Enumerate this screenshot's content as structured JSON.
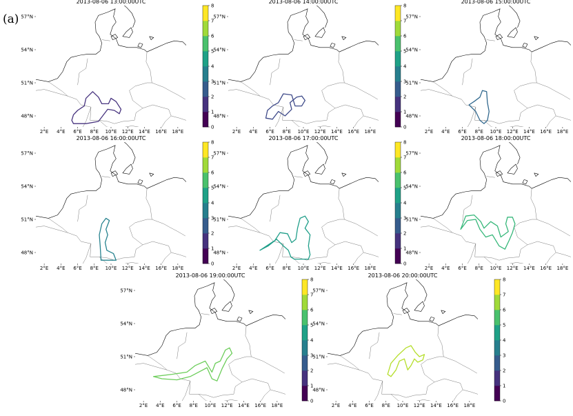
{
  "figure_label": "(a)",
  "colors": {
    "colormap": "viridis",
    "colorbar": [
      "#440154",
      "#46327e",
      "#365c8d",
      "#277f8e",
      "#1fa187",
      "#4ac16d",
      "#a0da39",
      "#fde725"
    ],
    "coast": "#000000",
    "border": "#555555"
  },
  "chart_data": [
    {
      "type": "contour",
      "title": "2013-08-06 13:00:00UTC",
      "level": 0.3,
      "color": "#46327e",
      "xlim": [
        1,
        19
      ],
      "ylim": [
        47,
        58
      ],
      "xticks": [
        "2°E",
        "4°E",
        "6°E",
        "8°E",
        "10°E",
        "12°E",
        "14°E",
        "16°E",
        "18°E"
      ],
      "yticks": [
        "48°N",
        "51°N",
        "54°N",
        "57°N"
      ],
      "colorbar": {
        "min": 0,
        "max": 8,
        "ticks": [
          "0",
          "1",
          "2",
          "3",
          "4",
          "5",
          "6",
          "7",
          "8"
        ]
      },
      "contour": [
        [
          5.3,
          47.6
        ],
        [
          5.5,
          47.3
        ],
        [
          7.0,
          47.3
        ],
        [
          8.5,
          47.5
        ],
        [
          9.6,
          48.6
        ],
        [
          10.4,
          48.5
        ],
        [
          11.0,
          48.2
        ],
        [
          11.2,
          48.6
        ],
        [
          10.6,
          49.3
        ],
        [
          10.0,
          49.6
        ],
        [
          9.7,
          49.1
        ],
        [
          8.9,
          49.1
        ],
        [
          8.5,
          49.7
        ],
        [
          7.8,
          50.2
        ],
        [
          7.0,
          49.6
        ],
        [
          6.8,
          48.9
        ],
        [
          6.0,
          48.5
        ],
        [
          5.5,
          48.1
        ],
        [
          5.3,
          47.6
        ]
      ]
    },
    {
      "type": "contour",
      "title": "2013-08-06 14:00:00UTC",
      "level": 1.2,
      "color": "#3e4a89",
      "xlim": [
        1,
        19
      ],
      "ylim": [
        47,
        58
      ],
      "xticks": [
        "2°E",
        "4°E",
        "6°E",
        "8°E",
        "10°E",
        "12°E",
        "14°E",
        "16°E",
        "18°E"
      ],
      "yticks": [
        "48°N",
        "51°N",
        "54°N",
        "57°N"
      ],
      "colorbar": {
        "min": 0,
        "max": 8,
        "ticks": [
          "0",
          "1",
          "2",
          "3",
          "4",
          "5",
          "6",
          "7",
          "8"
        ]
      },
      "contour": [
        [
          5.5,
          47.8
        ],
        [
          6.3,
          47.7
        ],
        [
          7.0,
          48.4
        ],
        [
          7.8,
          48.0
        ],
        [
          8.6,
          48.6
        ],
        [
          8.4,
          49.2
        ],
        [
          9.2,
          49.7
        ],
        [
          9.8,
          49.8
        ],
        [
          10.2,
          49.4
        ],
        [
          9.8,
          48.9
        ],
        [
          9.0,
          48.9
        ],
        [
          8.6,
          49.9
        ],
        [
          7.6,
          50.0
        ],
        [
          7.0,
          49.2
        ],
        [
          6.3,
          48.9
        ],
        [
          5.7,
          48.5
        ],
        [
          5.5,
          47.8
        ]
      ]
    },
    {
      "type": "contour",
      "title": "2013-08-06 15:00:00UTC",
      "level": 2.2,
      "color": "#31688e",
      "xlim": [
        1,
        19
      ],
      "ylim": [
        47,
        58
      ],
      "xticks": [
        "2°E",
        "4°E",
        "6°E",
        "8°E",
        "10°E",
        "12°E",
        "14°E",
        "16°E",
        "18°E"
      ],
      "yticks": [
        "48°N",
        "51°N",
        "54°N",
        "57°N"
      ],
      "colorbar": {
        "min": 0,
        "max": 8,
        "ticks": [
          "0",
          "1",
          "2",
          "3",
          "4",
          "5",
          "6",
          "7",
          "8"
        ]
      },
      "contour": [
        [
          6.8,
          49.0
        ],
        [
          7.6,
          48.4
        ],
        [
          8.1,
          47.6
        ],
        [
          8.6,
          47.3
        ],
        [
          9.0,
          47.6
        ],
        [
          9.2,
          48.4
        ],
        [
          9.0,
          49.2
        ],
        [
          8.9,
          50.2
        ],
        [
          8.4,
          50.3
        ],
        [
          8.1,
          49.7
        ],
        [
          7.4,
          49.3
        ],
        [
          6.8,
          49.0
        ]
      ]
    },
    {
      "type": "contour",
      "title": "2013-08-06 16:00:00UTC",
      "level": 3.1,
      "color": "#26828e",
      "xlim": [
        1,
        19
      ],
      "ylim": [
        47,
        58
      ],
      "xticks": [
        "2°E",
        "4°E",
        "6°E",
        "8°E",
        "10°E",
        "12°E",
        "14°E",
        "16°E",
        "18°E"
      ],
      "yticks": [
        "48°N",
        "51°N",
        "54°N",
        "57°N"
      ],
      "colorbar": {
        "min": 0,
        "max": 8,
        "ticks": [
          "0",
          "1",
          "2",
          "3",
          "4",
          "5",
          "6",
          "7",
          "8"
        ]
      },
      "contour": [
        [
          8.8,
          47.3
        ],
        [
          10.6,
          47.3
        ],
        [
          10.3,
          47.9
        ],
        [
          9.5,
          48.2
        ],
        [
          9.3,
          48.9
        ],
        [
          9.6,
          49.6
        ],
        [
          9.4,
          50.1
        ],
        [
          9.8,
          50.9
        ],
        [
          9.4,
          51.1
        ],
        [
          8.9,
          50.6
        ],
        [
          8.6,
          49.6
        ],
        [
          8.7,
          48.6
        ],
        [
          8.8,
          47.3
        ]
      ]
    },
    {
      "type": "contour",
      "title": "2013-08-06 17:00:00UTC",
      "level": 3.8,
      "color": "#1f9e89",
      "xlim": [
        1,
        19
      ],
      "ylim": [
        47,
        58
      ],
      "xticks": [
        "2°E",
        "4°E",
        "6°E",
        "8°E",
        "10°E",
        "12°E",
        "14°E",
        "16°E",
        "18°E"
      ],
      "yticks": [
        "48°N",
        "51°N",
        "54°N",
        "57°N"
      ],
      "colorbar": {
        "min": 0,
        "max": 8,
        "ticks": [
          "0",
          "1",
          "2",
          "3",
          "4",
          "5",
          "6",
          "7",
          "8"
        ]
      },
      "contour": [
        [
          4.8,
          48.2
        ],
        [
          5.8,
          48.6
        ],
        [
          6.8,
          49.2
        ],
        [
          7.6,
          48.6
        ],
        [
          8.2,
          48.2
        ],
        [
          8.5,
          47.6
        ],
        [
          8.9,
          47.4
        ],
        [
          10.6,
          47.4
        ],
        [
          10.8,
          47.8
        ],
        [
          10.6,
          48.6
        ],
        [
          10.8,
          49.6
        ],
        [
          10.2,
          50.2
        ],
        [
          10.6,
          50.8
        ],
        [
          10.2,
          51.3
        ],
        [
          9.6,
          51.1
        ],
        [
          9.3,
          50.2
        ],
        [
          9.1,
          49.2
        ],
        [
          8.6,
          48.9
        ],
        [
          8.1,
          49.7
        ],
        [
          7.2,
          49.8
        ],
        [
          6.6,
          49.1
        ],
        [
          5.6,
          48.6
        ],
        [
          4.8,
          48.2
        ]
      ]
    },
    {
      "type": "contour",
      "title": "2013-08-06 18:00:00UTC",
      "level": 4.7,
      "color": "#35b779",
      "xlim": [
        1,
        19
      ],
      "ylim": [
        47,
        58
      ],
      "xticks": [
        "2°E",
        "4°E",
        "6°E",
        "8°E",
        "10°E",
        "12°E",
        "14°E",
        "16°E",
        "18°E"
      ],
      "yticks": [
        "48°N",
        "51°N",
        "54°N",
        "57°N"
      ],
      "colorbar": {
        "min": 0,
        "max": 8,
        "ticks": [
          "0",
          "1",
          "2",
          "3",
          "4",
          "5",
          "6",
          "7",
          "8"
        ]
      },
      "contour": [
        [
          5.8,
          50.1
        ],
        [
          6.6,
          50.9
        ],
        [
          7.6,
          51.0
        ],
        [
          8.1,
          50.1
        ],
        [
          8.8,
          49.4
        ],
        [
          9.6,
          49.6
        ],
        [
          10.4,
          48.6
        ],
        [
          11.1,
          48.3
        ],
        [
          11.6,
          49.1
        ],
        [
          12.0,
          49.8
        ],
        [
          12.3,
          50.6
        ],
        [
          12.0,
          51.2
        ],
        [
          11.4,
          51.2
        ],
        [
          11.2,
          50.6
        ],
        [
          11.5,
          49.9
        ],
        [
          10.6,
          49.4
        ],
        [
          10.2,
          50.4
        ],
        [
          9.4,
          50.8
        ],
        [
          8.6,
          50.2
        ],
        [
          8.2,
          50.8
        ],
        [
          7.4,
          51.4
        ],
        [
          6.4,
          51.3
        ],
        [
          5.8,
          50.1
        ]
      ]
    },
    {
      "type": "contour",
      "title": "2013-08-06 19:00:00UTC",
      "level": 5.8,
      "color": "#6ccd5a",
      "xlim": [
        1,
        19
      ],
      "ylim": [
        47,
        58
      ],
      "xticks": [
        "2°E",
        "4°E",
        "6°E",
        "8°E",
        "10°E",
        "12°E",
        "14°E",
        "16°E",
        "18°E"
      ],
      "yticks": [
        "48°N",
        "51°N",
        "54°N",
        "57°N"
      ],
      "colorbar": {
        "min": 0,
        "max": 8,
        "ticks": [
          "0",
          "1",
          "2",
          "3",
          "4",
          "5",
          "6",
          "7",
          "8"
        ]
      },
      "contour": [
        [
          3.2,
          49.2
        ],
        [
          5.4,
          49.4
        ],
        [
          7.2,
          49.6
        ],
        [
          8.2,
          50.2
        ],
        [
          9.4,
          50.6
        ],
        [
          10.2,
          49.6
        ],
        [
          10.6,
          50.4
        ],
        [
          11.2,
          50.6
        ],
        [
          11.8,
          51.6
        ],
        [
          12.3,
          51.8
        ],
        [
          12.6,
          51.3
        ],
        [
          12.0,
          50.8
        ],
        [
          11.4,
          49.9
        ],
        [
          10.8,
          48.8
        ],
        [
          10.2,
          49.0
        ],
        [
          9.6,
          50.0
        ],
        [
          8.6,
          49.6
        ],
        [
          7.6,
          49.2
        ],
        [
          6.0,
          48.9
        ],
        [
          4.2,
          49.0
        ],
        [
          3.2,
          49.2
        ]
      ]
    },
    {
      "type": "contour",
      "title": "2013-08-06 20:00:00UTC",
      "level": 6.8,
      "color": "#b5de2b",
      "xlim": [
        1,
        19
      ],
      "ylim": [
        47,
        58
      ],
      "xticks": [
        "2°E",
        "4°E",
        "6°E",
        "8°E",
        "10°E",
        "12°E",
        "14°E",
        "16°E",
        "18°E"
      ],
      "yticks": [
        "48°N",
        "51°N",
        "54°N",
        "57°N"
      ],
      "colorbar": {
        "min": 0,
        "max": 8,
        "ticks": [
          "0",
          "1",
          "2",
          "3",
          "4",
          "5",
          "6",
          "7",
          "8"
        ]
      },
      "contour": [
        [
          8.2,
          49.4
        ],
        [
          8.6,
          50.4
        ],
        [
          9.4,
          51.1
        ],
        [
          10.4,
          51.8
        ],
        [
          11.0,
          52.0
        ],
        [
          11.5,
          51.4
        ],
        [
          12.0,
          51.0
        ],
        [
          12.6,
          51.2
        ],
        [
          12.4,
          50.7
        ],
        [
          11.8,
          50.5
        ],
        [
          11.4,
          50.8
        ],
        [
          11.0,
          50.2
        ],
        [
          10.6,
          49.8
        ],
        [
          10.2,
          50.8
        ],
        [
          9.6,
          50.6
        ],
        [
          9.2,
          49.8
        ],
        [
          8.6,
          49.2
        ],
        [
          8.2,
          49.4
        ]
      ]
    }
  ]
}
